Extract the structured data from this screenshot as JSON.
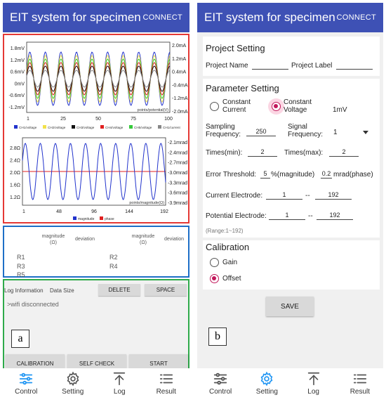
{
  "panel_a": {
    "appbar": {
      "title": "EIT system for specimen",
      "connect": "CONNECT"
    },
    "chart1": {
      "y_left": [
        "1.8mV",
        "1.2mV",
        "0.6mV",
        "0mV",
        "-0.6mV",
        "-1.2mV"
      ],
      "y_right": [
        "2.0mA",
        "1.2mA",
        "0.4mA",
        "-0.4mA",
        "-1.2mA",
        "-2.0mA"
      ],
      "x_ticks": [
        "1",
        "25",
        "50",
        "75",
        "100"
      ],
      "xlabel": "points/potential(V)",
      "legend": [
        {
          "name": "CH1/voltage",
          "color": "#2233cc"
        },
        {
          "name": "CH2/voltage",
          "color": "#f2e14a"
        },
        {
          "name": "CH3/voltage",
          "color": "#111111"
        },
        {
          "name": "CH4/voltage",
          "color": "#e02020"
        },
        {
          "name": "CH5/voltage",
          "color": "#35c93a"
        },
        {
          "name": "CH1/current",
          "color": "#888888"
        }
      ]
    },
    "chart2": {
      "y_left": [
        "2.8Ω",
        "2.4Ω",
        "2.0Ω",
        "1.6Ω",
        "1.2Ω"
      ],
      "y_right": [
        "-2.1mrad",
        "-2.4mrad",
        "-2.7mrad",
        "-3.0mrad",
        "-3.3mrad",
        "-3.6mrad",
        "-3.9mrad"
      ],
      "x_ticks": [
        "1",
        "48",
        "96",
        "144",
        "192"
      ],
      "xlabel": "points/magnitude(Ω)",
      "legend": [
        {
          "name": "magnitude",
          "color": "#2233cc"
        },
        {
          "name": "phase",
          "color": "#e02020"
        }
      ]
    },
    "deviation": {
      "head_mag_1": "magnitude\n(Ω)",
      "head_dev_1": "deviation",
      "head_mag_2": "magnitude\n(Ω)",
      "head_dev_2": "deviation",
      "r1": "R1",
      "r2": "R2",
      "r3": "R3",
      "r4": "R4",
      "r5": "R5"
    },
    "log": {
      "info_label": "Log Information",
      "size_label": "Data Size",
      "delete": "DELETE",
      "space": "SPACE",
      "message": ">wifi disconnected"
    },
    "tag": "a",
    "buttons": {
      "calibration": "CALIBRATION",
      "self_check": "SELF CHECK",
      "start": "START"
    }
  },
  "panel_b": {
    "appbar": {
      "title": "EIT system for specimen",
      "connect": "CONNECT"
    },
    "project": {
      "title": "Project Setting",
      "name_label": "Project Name",
      "label_label": "Project Label",
      "name_value": "",
      "label_value": ""
    },
    "param": {
      "title": "Parameter Setting",
      "constant_current": "Constant Current",
      "constant_voltage": "Constant Voltage",
      "voltage_value": "1mV",
      "sampling_label": "Sampling Frequency:",
      "sampling_value": "250",
      "signal_label": "Signal Frequency:",
      "signal_value": "1",
      "times_min_label": "Times(min):",
      "times_min_value": "2",
      "times_max_label": "Times(max):",
      "times_max_value": "2",
      "error_label": "Error Threshold:",
      "error_mag_value": "5",
      "error_mag_unit": "%(magnitude)",
      "error_phase_value": "0.2",
      "error_phase_unit": "mrad(phase)",
      "current_label": "Current Electrode:",
      "current_from": "1",
      "current_to": "192",
      "potential_label": "Potential Electrode:",
      "potential_from": "1",
      "potential_to": "192",
      "dash": "--",
      "range": "(Range:1~192)"
    },
    "calibration": {
      "title": "Calibration",
      "gain": "Gain",
      "offset": "Offset"
    },
    "save": "SAVE",
    "tag": "b"
  },
  "nav": {
    "control": "Control",
    "setting": "Setting",
    "log": "Log",
    "result": "Result"
  },
  "colors": {
    "appbar": "#3e51b5",
    "accent": "#c2185b",
    "nav_active": "#2196f3"
  }
}
